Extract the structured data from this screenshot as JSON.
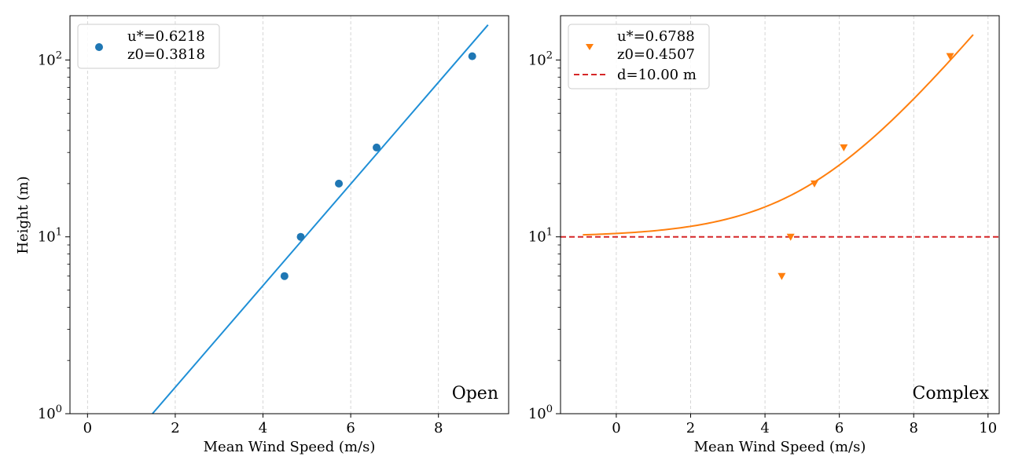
{
  "chart_data": [
    {
      "type": "scatter",
      "panel_label": "Open",
      "xlabel": "Mean Wind Speed (m/s)",
      "ylabel": "Height (m)",
      "xlim": [
        -0.4,
        9.6
      ],
      "ylim": [
        1,
        178
      ],
      "yscale": "log",
      "xticks": [
        0,
        2,
        4,
        6,
        8
      ],
      "yticks": [
        1,
        10,
        100
      ],
      "ytick_labels": [
        "10^0",
        "10^1",
        "10^2"
      ],
      "grid": "x-dashed",
      "legend_position": "top-left",
      "legend": [
        {
          "label_lines": [
            "u*=0.6218",
            "z0=0.3818"
          ],
          "marker": "circle",
          "color": "#1f77b4"
        }
      ],
      "points": [
        {
          "x": 4.49,
          "y": 6
        },
        {
          "x": 4.86,
          "y": 10
        },
        {
          "x": 5.73,
          "y": 20
        },
        {
          "x": 6.59,
          "y": 32
        },
        {
          "x": 8.77,
          "y": 105
        }
      ],
      "fit_line": {
        "color": "#1f8fd6",
        "points": [
          {
            "x": 1.48,
            "y": 1
          },
          {
            "x": 9.13,
            "y": 158
          }
        ]
      }
    },
    {
      "type": "scatter",
      "panel_label": "Complex",
      "xlabel": "Mean Wind Speed (m/s)",
      "ylabel": "",
      "xlim": [
        -1.5,
        10.3
      ],
      "ylim": [
        1,
        178
      ],
      "yscale": "log",
      "xticks": [
        0,
        2,
        4,
        6,
        8,
        10
      ],
      "yticks": [
        1,
        10,
        100
      ],
      "ytick_labels": [
        "10^0",
        "10^1",
        "10^2"
      ],
      "grid": "x-dashed",
      "legend_position": "top-left",
      "legend": [
        {
          "label_lines": [
            "u*=0.6788",
            "z0=0.4507"
          ],
          "marker": "triangle-down",
          "color": "#ff7f0e"
        },
        {
          "label_lines": [
            "d=10.00 m"
          ],
          "marker": "dashed-line",
          "color": "#d62728"
        }
      ],
      "points": [
        {
          "x": 4.45,
          "y": 6
        },
        {
          "x": 4.69,
          "y": 10
        },
        {
          "x": 5.33,
          "y": 20
        },
        {
          "x": 6.12,
          "y": 32
        },
        {
          "x": 8.98,
          "y": 105
        }
      ],
      "fit_curve": {
        "color": "#ff7f0e",
        "u_star": 0.6788,
        "z0": 0.4507,
        "d": 10,
        "x_start": -0.9,
        "x_end": 9.6
      },
      "reference_line": {
        "y": 10,
        "color": "#d62728",
        "style": "dashed"
      }
    }
  ]
}
